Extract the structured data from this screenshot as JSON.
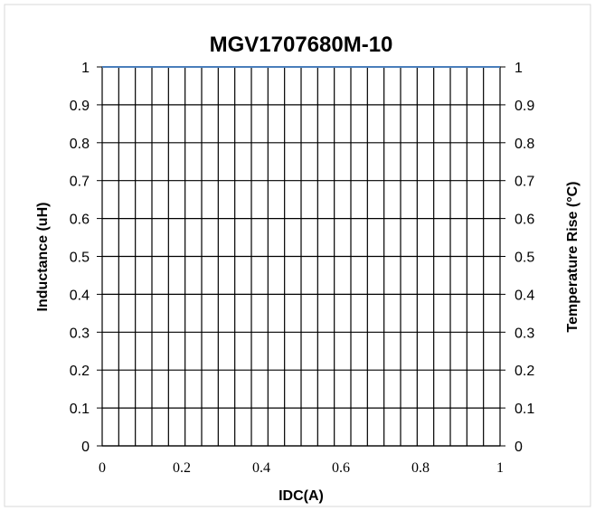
{
  "chart_data": {
    "type": "line",
    "title": "MGV1707680M-10",
    "xlabel": "IDC(A)",
    "ylabel": "Inductance (uH)",
    "y2label": "Temperature Rise (°C)",
    "xlim": [
      0,
      1
    ],
    "ylim": [
      0,
      1
    ],
    "y2lim": [
      0,
      1
    ],
    "x_ticks": [
      "0",
      "0.2",
      "0.4",
      "0.6",
      "0.8",
      "1"
    ],
    "y_ticks": [
      "0",
      "0.1",
      "0.2",
      "0.3",
      "0.4",
      "0.5",
      "0.6",
      "0.7",
      "0.8",
      "0.9",
      "1"
    ],
    "y2_ticks": [
      "0",
      "0.1",
      "0.2",
      "0.3",
      "0.4",
      "0.5",
      "0.6",
      "0.7",
      "0.8",
      "0.9",
      "1"
    ],
    "grid": true,
    "series": []
  }
}
